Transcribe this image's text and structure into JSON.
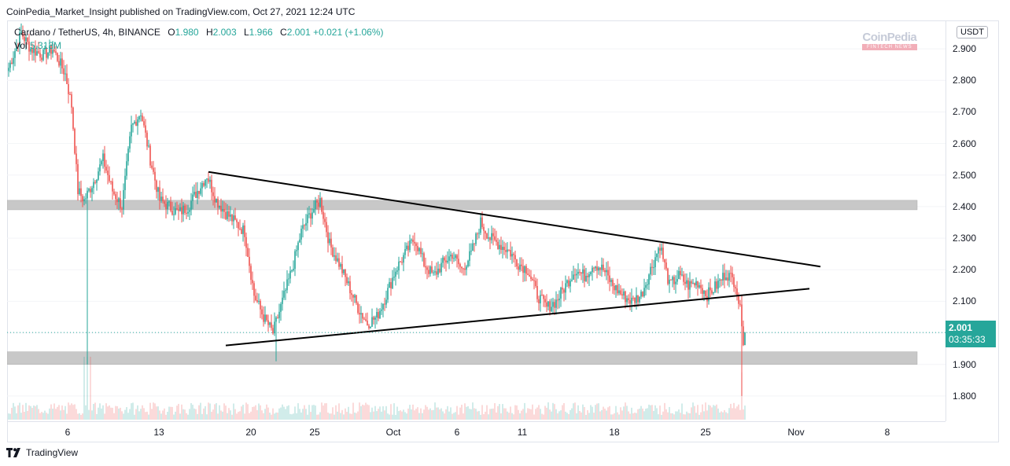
{
  "header": {
    "credit": "CoinPedia_Market_Insight published on TradingView.com, Oct 27, 2021 12:24 UTC"
  },
  "legend": {
    "symbol": "Cardano / TetherUS, 4h, BINANCE",
    "open_label": "O",
    "open": "1.980",
    "high_label": "H",
    "high": "2.003",
    "low_label": "L",
    "low": "1.966",
    "close_label": "C",
    "close": "2.001",
    "change": "+0.021 (+1.06%)",
    "volume_label": "Vol",
    "volume": "5.313M"
  },
  "watermark": {
    "main": "CoinPedia",
    "sub": "FINTECH NEWS"
  },
  "price_axis": {
    "currency": "USDT",
    "ticks": [
      "2.900",
      "2.800",
      "2.700",
      "2.600",
      "2.500",
      "2.400",
      "2.300",
      "2.200",
      "2.100",
      "2.000",
      "1.900",
      "1.800"
    ],
    "current_price": "2.001",
    "countdown": "03:35:33"
  },
  "time_axis": {
    "ticks": [
      "6",
      "13",
      "20",
      "25",
      "Oct",
      "6",
      "11",
      "18",
      "25",
      "Nov",
      "8"
    ]
  },
  "footer": {
    "brand": "TradingView"
  },
  "colors": {
    "up": "#26a69a",
    "down": "#ef5350",
    "zone": "#c8c8c8",
    "trendline": "#000000"
  },
  "chart_data": {
    "type": "candlestick",
    "interval": "4h",
    "ylim": [
      1.72,
      2.99
    ],
    "y_ticks": [
      1.8,
      1.9,
      2.0,
      2.1,
      2.2,
      2.3,
      2.4,
      2.5,
      2.6,
      2.7,
      2.8,
      2.9
    ],
    "x_ticks": [
      "6",
      "13",
      "20",
      "25",
      "Oct",
      "6",
      "11",
      "18",
      "25",
      "Nov",
      "8"
    ],
    "last": {
      "open": 1.98,
      "high": 2.003,
      "low": 1.966,
      "close": 2.001,
      "volume": "5.313M"
    },
    "anchors": [
      [
        0,
        2.84
      ],
      [
        8,
        2.95
      ],
      [
        14,
        2.9
      ],
      [
        22,
        2.88
      ],
      [
        28,
        2.9
      ],
      [
        36,
        2.82
      ],
      [
        40,
        2.72
      ],
      [
        44,
        2.45
      ],
      [
        48,
        2.42
      ],
      [
        54,
        2.48
      ],
      [
        60,
        2.55
      ],
      [
        66,
        2.45
      ],
      [
        72,
        2.4
      ],
      [
        78,
        2.65
      ],
      [
        84,
        2.7
      ],
      [
        90,
        2.55
      ],
      [
        96,
        2.42
      ],
      [
        102,
        2.4
      ],
      [
        108,
        2.38
      ],
      [
        114,
        2.4
      ],
      [
        120,
        2.45
      ],
      [
        126,
        2.5
      ],
      [
        132,
        2.42
      ],
      [
        138,
        2.38
      ],
      [
        144,
        2.35
      ],
      [
        150,
        2.32
      ],
      [
        156,
        2.12
      ],
      [
        162,
        2.05
      ],
      [
        168,
        2.0
      ],
      [
        174,
        2.1
      ],
      [
        180,
        2.2
      ],
      [
        186,
        2.32
      ],
      [
        192,
        2.38
      ],
      [
        198,
        2.42
      ],
      [
        204,
        2.28
      ],
      [
        210,
        2.22
      ],
      [
        216,
        2.15
      ],
      [
        222,
        2.08
      ],
      [
        228,
        2.03
      ],
      [
        234,
        2.05
      ],
      [
        240,
        2.12
      ],
      [
        246,
        2.2
      ],
      [
        252,
        2.25
      ],
      [
        258,
        2.3
      ],
      [
        264,
        2.22
      ],
      [
        270,
        2.18
      ],
      [
        276,
        2.22
      ],
      [
        282,
        2.25
      ],
      [
        288,
        2.2
      ],
      [
        294,
        2.25
      ],
      [
        300,
        2.35
      ],
      [
        306,
        2.3
      ],
      [
        312,
        2.28
      ],
      [
        318,
        2.26
      ],
      [
        324,
        2.22
      ],
      [
        330,
        2.2
      ],
      [
        336,
        2.12
      ],
      [
        342,
        2.08
      ],
      [
        348,
        2.1
      ],
      [
        354,
        2.15
      ],
      [
        360,
        2.2
      ],
      [
        366,
        2.18
      ],
      [
        372,
        2.22
      ],
      [
        378,
        2.2
      ],
      [
        384,
        2.15
      ],
      [
        390,
        2.12
      ],
      [
        396,
        2.1
      ],
      [
        402,
        2.12
      ],
      [
        408,
        2.2
      ],
      [
        414,
        2.28
      ],
      [
        420,
        2.15
      ],
      [
        426,
        2.18
      ],
      [
        432,
        2.15
      ],
      [
        438,
        2.16
      ],
      [
        444,
        2.12
      ],
      [
        450,
        2.15
      ],
      [
        456,
        2.19
      ],
      [
        462,
        2.16
      ],
      [
        466,
        2.04
      ],
      [
        467,
        1.98
      ],
      [
        468,
        2.0
      ]
    ],
    "zones": [
      {
        "from": 2.39,
        "to": 2.42
      },
      {
        "from": 1.9,
        "to": 1.94
      }
    ],
    "trendlines": [
      {
        "x1": 127,
        "y1": 2.51,
        "x2": 516,
        "y2": 2.21
      },
      {
        "x1": 138,
        "y1": 1.96,
        "x2": 509,
        "y2": 2.14
      }
    ]
  }
}
